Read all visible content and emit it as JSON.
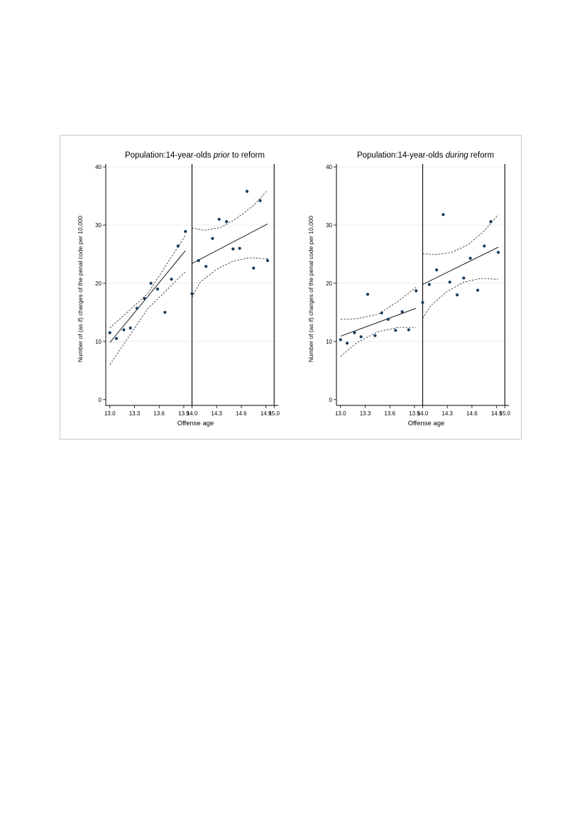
{
  "figure": {
    "x_axis_label": "Offense age"
  },
  "chart_data": [
    {
      "type": "scatter",
      "panel": "left",
      "title": {
        "prefix": "Population:14-year-olds ",
        "italic": "prior",
        "suffix": " to reform"
      },
      "xlabel": "Offense age",
      "ylabel": "Number of (as if) charges of the penal code per 10,000",
      "xlim": [
        12.95,
        15.05
      ],
      "ylim": [
        -1,
        40.5
      ],
      "xticks": [
        13.0,
        13.3,
        13.6,
        13.9,
        14.0,
        14.3,
        14.6,
        14.9,
        15.0
      ],
      "xtick_labels": [
        "13.0",
        "13.3",
        "13.6",
        "13.9",
        "14.0",
        "14.3",
        "14.6",
        "14.9",
        "15.0"
      ],
      "yticks": [
        0,
        10,
        20,
        30,
        40
      ],
      "ytick_labels": [
        "0",
        "10",
        "20",
        "30",
        "40"
      ],
      "cutoff": 14.0,
      "grid": true,
      "points": [
        {
          "x": 13.0,
          "y": 11.5
        },
        {
          "x": 13.08,
          "y": 10.5
        },
        {
          "x": 13.17,
          "y": 12.0
        },
        {
          "x": 13.25,
          "y": 12.3
        },
        {
          "x": 13.33,
          "y": 15.7
        },
        {
          "x": 13.42,
          "y": 17.4
        },
        {
          "x": 13.5,
          "y": 20.0
        },
        {
          "x": 13.58,
          "y": 19.0
        },
        {
          "x": 13.67,
          "y": 15.0
        },
        {
          "x": 13.75,
          "y": 20.7
        },
        {
          "x": 13.83,
          "y": 26.4
        },
        {
          "x": 13.92,
          "y": 28.9
        },
        {
          "x": 14.0,
          "y": 18.2
        },
        {
          "x": 14.08,
          "y": 23.9
        },
        {
          "x": 14.17,
          "y": 22.9
        },
        {
          "x": 14.25,
          "y": 27.7
        },
        {
          "x": 14.33,
          "y": 31.0
        },
        {
          "x": 14.42,
          "y": 30.6
        },
        {
          "x": 14.5,
          "y": 25.9
        },
        {
          "x": 14.58,
          "y": 26.0
        },
        {
          "x": 14.67,
          "y": 35.8
        },
        {
          "x": 14.75,
          "y": 22.6
        },
        {
          "x": 14.83,
          "y": 34.2
        },
        {
          "x": 14.92,
          "y": 23.9
        }
      ],
      "fit": [
        {
          "name": "fit-before",
          "x": [
            13.0,
            13.92
          ],
          "y": [
            9.8,
            25.6
          ]
        },
        {
          "name": "fit-after",
          "x": [
            14.0,
            14.92
          ],
          "y": [
            23.4,
            30.2
          ]
        }
      ],
      "ci": [
        {
          "name": "ci-upper-before",
          "x": [
            13.0,
            13.46,
            13.92
          ],
          "y": [
            12.3,
            18.2,
            28.2
          ]
        },
        {
          "name": "ci-lower-before",
          "x": [
            13.0,
            13.46,
            13.92
          ],
          "y": [
            6.0,
            15.6,
            22.0
          ]
        },
        {
          "name": "ci-upper-after",
          "x": [
            14.0,
            14.15,
            14.35,
            14.55,
            14.75,
            14.92
          ],
          "y": [
            29.5,
            29.1,
            29.6,
            31.2,
            33.4,
            36.0
          ]
        },
        {
          "name": "ci-lower-after",
          "x": [
            14.0,
            14.1,
            14.3,
            14.5,
            14.7,
            14.92
          ],
          "y": [
            17.6,
            20.2,
            22.4,
            23.8,
            24.4,
            24.2
          ]
        }
      ]
    },
    {
      "type": "scatter",
      "panel": "right",
      "title": {
        "prefix": "Population:14-year-olds ",
        "italic": "during",
        "suffix": " reform"
      },
      "xlabel": "Offense age",
      "ylabel": "Number of (as if) charges of the penal code per 10,000",
      "xlim": [
        12.95,
        15.05
      ],
      "ylim": [
        -1,
        40.5
      ],
      "xticks": [
        13.0,
        13.3,
        13.6,
        13.9,
        14.0,
        14.3,
        14.6,
        14.9,
        15.0
      ],
      "xtick_labels": [
        "13.0",
        "13.3",
        "13.6",
        "13.9",
        "14.0",
        "14.3",
        "14.6",
        "14.9",
        "15.0"
      ],
      "yticks": [
        0,
        10,
        20,
        30,
        40
      ],
      "ytick_labels": [
        "0",
        "10",
        "20",
        "30",
        "40"
      ],
      "cutoff": 14.0,
      "grid": true,
      "points": [
        {
          "x": 13.0,
          "y": 10.3
        },
        {
          "x": 13.08,
          "y": 9.7
        },
        {
          "x": 13.17,
          "y": 11.5
        },
        {
          "x": 13.25,
          "y": 10.8
        },
        {
          "x": 13.33,
          "y": 18.1
        },
        {
          "x": 13.42,
          "y": 11.0
        },
        {
          "x": 13.5,
          "y": 14.9
        },
        {
          "x": 13.58,
          "y": 13.8
        },
        {
          "x": 13.67,
          "y": 11.9
        },
        {
          "x": 13.75,
          "y": 15.1
        },
        {
          "x": 13.83,
          "y": 12.0
        },
        {
          "x": 13.92,
          "y": 18.7
        },
        {
          "x": 14.0,
          "y": 16.7
        },
        {
          "x": 14.08,
          "y": 19.8
        },
        {
          "x": 14.17,
          "y": 22.3
        },
        {
          "x": 14.25,
          "y": 31.8
        },
        {
          "x": 14.33,
          "y": 20.2
        },
        {
          "x": 14.42,
          "y": 18.0
        },
        {
          "x": 14.5,
          "y": 20.9
        },
        {
          "x": 14.58,
          "y": 24.3
        },
        {
          "x": 14.67,
          "y": 18.8
        },
        {
          "x": 14.75,
          "y": 26.4
        },
        {
          "x": 14.83,
          "y": 30.6
        },
        {
          "x": 14.92,
          "y": 25.3
        }
      ],
      "fit": [
        {
          "name": "fit-before",
          "x": [
            13.0,
            13.92
          ],
          "y": [
            10.9,
            15.7
          ]
        },
        {
          "name": "fit-after",
          "x": [
            14.0,
            14.92
          ],
          "y": [
            19.8,
            26.2
          ]
        }
      ],
      "ci": [
        {
          "name": "ci-upper-before",
          "x": [
            13.0,
            13.2,
            13.46,
            13.7,
            13.92
          ],
          "y": [
            13.8,
            13.9,
            14.7,
            16.9,
            19.3
          ]
        },
        {
          "name": "ci-lower-before",
          "x": [
            13.0,
            13.2,
            13.46,
            13.7,
            13.92
          ],
          "y": [
            7.4,
            9.8,
            11.7,
            12.4,
            12.4
          ]
        },
        {
          "name": "ci-upper-after",
          "x": [
            14.0,
            14.15,
            14.35,
            14.55,
            14.75,
            14.92
          ],
          "y": [
            25.1,
            24.9,
            25.3,
            26.6,
            29.0,
            31.8
          ]
        },
        {
          "name": "ci-lower-after",
          "x": [
            14.0,
            14.1,
            14.3,
            14.5,
            14.7,
            14.92
          ],
          "y": [
            14.0,
            16.2,
            18.6,
            20.2,
            20.8,
            20.7
          ]
        }
      ]
    }
  ]
}
